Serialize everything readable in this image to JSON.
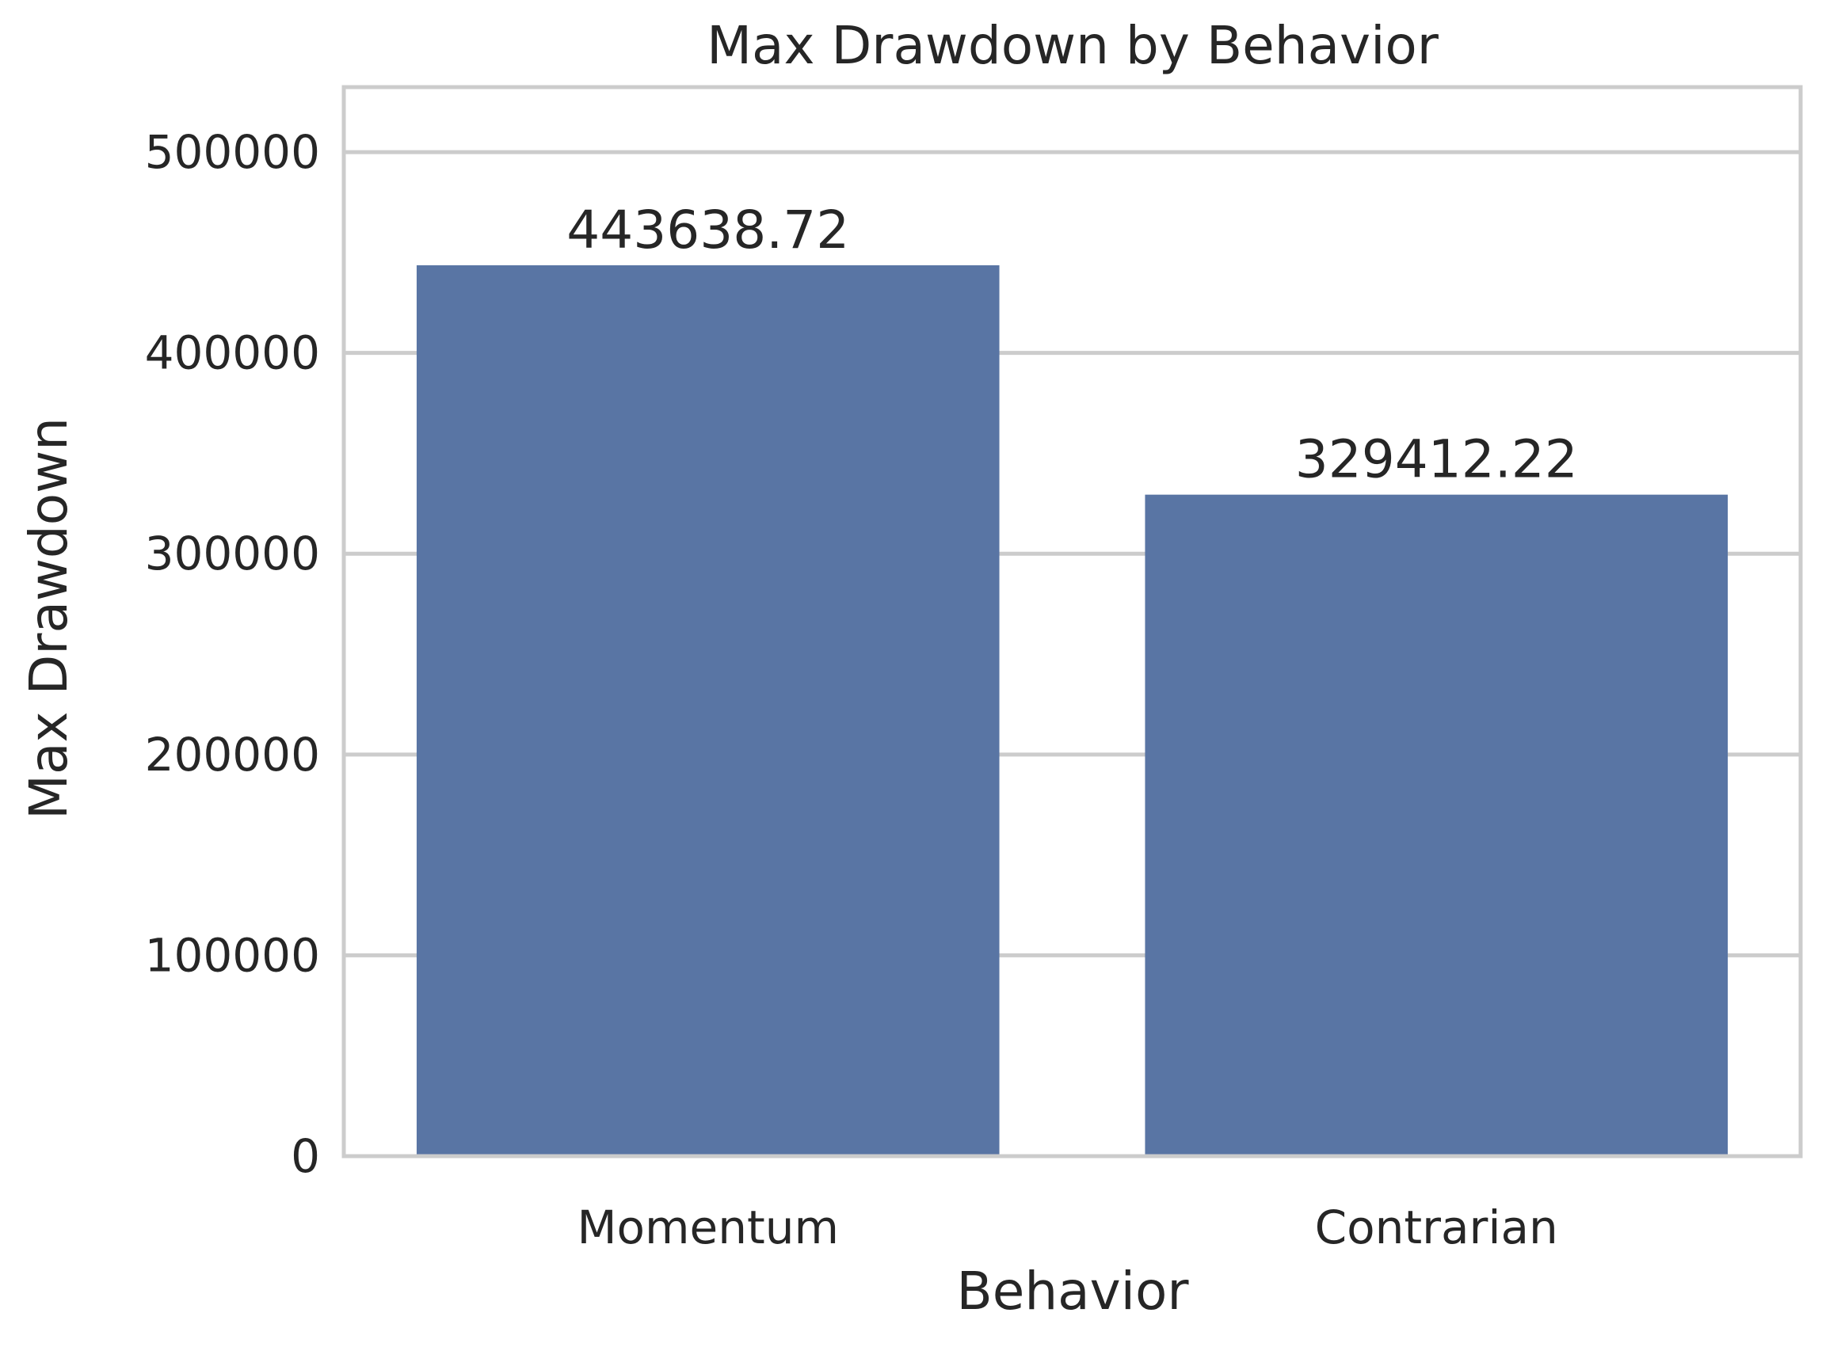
{
  "chart_data": {
    "type": "bar",
    "title": "Max Drawdown by Behavior",
    "xlabel": "Behavior",
    "ylabel": "Max Drawdown",
    "categories": [
      "Momentum",
      "Contrarian"
    ],
    "values": [
      443638.72,
      329412.22
    ],
    "value_labels": [
      "443638.72",
      "329412.22"
    ],
    "ylim": [
      0,
      532366.46
    ],
    "yticks": [
      0,
      100000,
      200000,
      300000,
      400000,
      500000
    ],
    "ytick_labels": [
      "0",
      "100000",
      "200000",
      "300000",
      "400000",
      "500000"
    ],
    "grid": "horizontal",
    "legend": "none",
    "colors": {
      "bar": "#5975a4",
      "grid": "#cccccc",
      "frame": "#cccccc",
      "text": "#262626",
      "background": "#ffffff"
    }
  }
}
